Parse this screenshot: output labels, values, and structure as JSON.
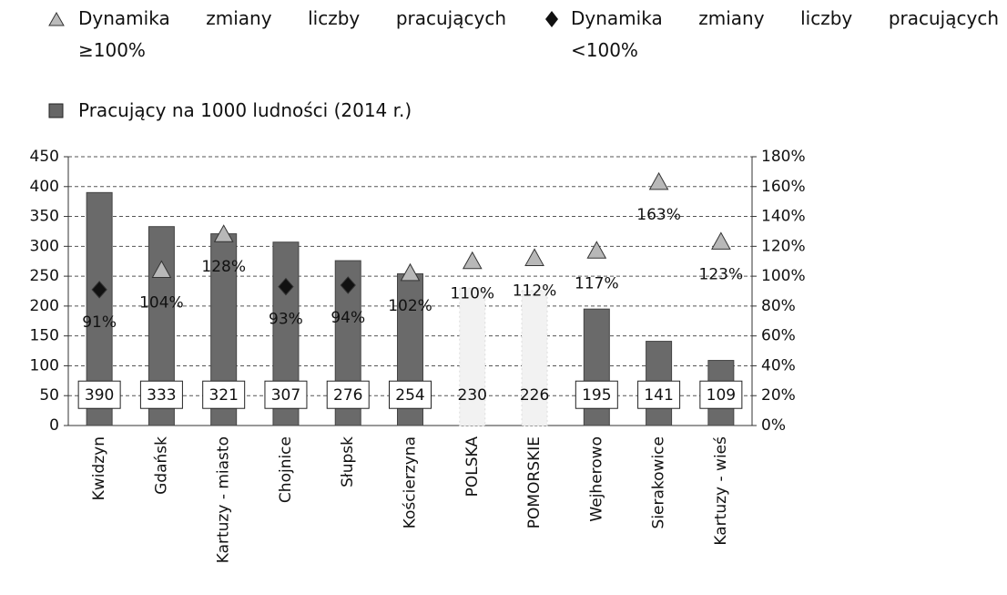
{
  "chart_data": {
    "type": "bar",
    "categories": [
      "Kwidzyn",
      "Gdańsk",
      "Kartuzy - miasto",
      "Chojnice",
      "Słupsk",
      "Kościerzyna",
      "POLSKA",
      "POMORSKIE",
      "Wejherowo",
      "Sierakowice",
      "Kartuzy - wieś"
    ],
    "series": [
      {
        "name": "Dynamika zmiany liczby pracujących ≥100%",
        "type": "scatter",
        "marker": "triangle",
        "axis": "y2",
        "color": "#b8b8b8",
        "values": [
          null,
          104,
          128,
          null,
          null,
          102,
          110,
          112,
          117,
          163,
          123
        ],
        "value_labels": [
          null,
          "104%",
          "128%",
          null,
          null,
          "102%",
          "110%",
          "112%",
          "117%",
          "163%",
          "123%"
        ]
      },
      {
        "name": "Dynamika zmiany liczby pracujących <100%",
        "type": "scatter",
        "marker": "diamond",
        "axis": "y2",
        "color": "#111111",
        "values": [
          91,
          null,
          null,
          93,
          94,
          null,
          null,
          null,
          null,
          null,
          null
        ],
        "value_labels": [
          "91%",
          null,
          null,
          "93%",
          "94%",
          null,
          null,
          null,
          null,
          null,
          null
        ]
      },
      {
        "name": "Pracujący na 1000 ludności (2014 r.)",
        "type": "bar",
        "axis": "y",
        "colors": [
          "#6a6a6a",
          "#6a6a6a",
          "#6a6a6a",
          "#6a6a6a",
          "#6a6a6a",
          "#6a6a6a",
          "#f2f2f2",
          "#f2f2f2",
          "#6a6a6a",
          "#6a6a6a",
          "#6a6a6a"
        ],
        "label_box": [
          true,
          true,
          true,
          true,
          true,
          true,
          false,
          false,
          true,
          true,
          true
        ],
        "values": [
          390,
          333,
          321,
          307,
          276,
          254,
          230,
          226,
          195,
          141,
          109
        ]
      }
    ],
    "ylim": [
      0,
      450
    ],
    "yticks": [
      0,
      50,
      100,
      150,
      200,
      250,
      300,
      350,
      400,
      450
    ],
    "y2lim": [
      0,
      180
    ],
    "y2ticks": [
      {
        "value": 0,
        "label": "0%"
      },
      {
        "value": 20,
        "label": "20%"
      },
      {
        "value": 40,
        "label": "40%"
      },
      {
        "value": 60,
        "label": "60%"
      },
      {
        "value": 80,
        "label": "80%"
      },
      {
        "value": 100,
        "label": "100%"
      },
      {
        "value": 120,
        "label": "120%"
      },
      {
        "value": 140,
        "label": "140%"
      },
      {
        "value": 160,
        "label": "160%"
      },
      {
        "value": 180,
        "label": "180%"
      }
    ],
    "grid": true
  }
}
